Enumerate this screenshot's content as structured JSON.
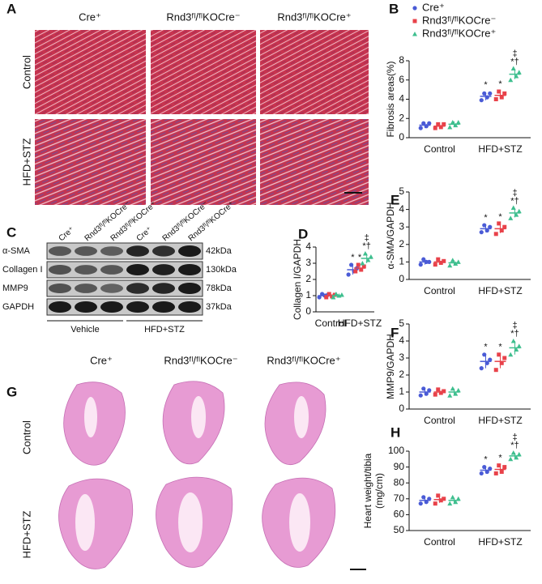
{
  "panels": [
    "A",
    "B",
    "C",
    "D",
    "E",
    "F",
    "G",
    "H"
  ],
  "histology": {
    "columns": [
      "Cre⁺",
      "Rnd3ᶠˡ/ᶠˡKOCre⁻",
      "Rnd3ᶠˡ/ᶠˡKOCre⁺"
    ],
    "rows": [
      "Control",
      "HFD+STZ"
    ]
  },
  "blot": {
    "lanes": [
      "Cre⁺",
      "Rnd3ᶠˡ/ᶠˡKOCre⁻",
      "Rnd3ᶠˡ/ᶠˡKOCre⁺",
      "Cre⁺",
      "Rnd3ᶠˡ/ᶠˡKOCre⁻",
      "Rnd3ᶠˡ/ᶠˡKOCre⁺"
    ],
    "bands": [
      {
        "name": "α-SMA",
        "size": "42kDa"
      },
      {
        "name": "Collagen I",
        "size": "130kDa"
      },
      {
        "name": "MMP9",
        "size": "78kDa"
      },
      {
        "name": "GAPDH",
        "size": "37kDa"
      }
    ],
    "groups": [
      "Vehicle",
      "HFD+STZ"
    ]
  },
  "heart_sections": {
    "columns": [
      "Cre⁺",
      "Rnd3ᶠˡ/ᶠˡKOCre⁻",
      "Rnd3ᶠˡ/ᶠˡKOCre⁺"
    ],
    "rows": [
      "Control",
      "HFD+STZ"
    ]
  },
  "chart_data": [
    {
      "type": "dot",
      "categories": [
        "Control",
        "HFD+STZ"
      ],
      "y_label": [
        "Fibrosis areas(%)"
      ],
      "ylim": [
        0,
        8
      ],
      "yticks": [
        0,
        2,
        4,
        6,
        8
      ],
      "legend": "top-left",
      "series": [
        {
          "name": "Cre⁺",
          "color": "#4a5bd6",
          "marker": "circle",
          "values": [
            1.3,
            4.3
          ],
          "errors": [
            0.3,
            0.4
          ],
          "dots": [
            [
              1.0,
              1.5,
              1.2,
              1.5
            ],
            [
              3.9,
              4.6,
              4.2,
              4.6
            ]
          ],
          "annotations": [
            null,
            [
              "*"
            ]
          ]
        },
        {
          "name": "Rnd3ᶠˡ/ᶠˡKOCre⁻",
          "color": "#e8424a",
          "marker": "square",
          "values": [
            1.2,
            4.4
          ],
          "errors": [
            0.3,
            0.4
          ],
          "dots": [
            [
              1.0,
              1.4,
              1.1,
              1.4
            ],
            [
              4.0,
              4.8,
              4.2,
              4.6
            ]
          ],
          "annotations": [
            null,
            [
              "*"
            ]
          ]
        },
        {
          "name": "Rnd3ᶠˡ/ᶠˡKOCre⁺",
          "color": "#3fbf8f",
          "marker": "triangle",
          "values": [
            1.4,
            6.6
          ],
          "errors": [
            0.3,
            0.5
          ],
          "dots": [
            [
              1.1,
              1.6,
              1.3,
              1.6
            ],
            [
              6.0,
              7.2,
              6.4,
              6.8
            ]
          ],
          "annotations": [
            null,
            [
              "‡",
              "*†"
            ]
          ]
        }
      ]
    },
    {
      "type": "dot",
      "categories": [
        "Control",
        "HFD+STZ"
      ],
      "y_label": [
        "Collagen I/GAPDH"
      ],
      "ylim": [
        0,
        4
      ],
      "yticks": [
        0,
        1,
        2,
        3,
        4
      ],
      "series": [
        {
          "color": "#4a5bd6",
          "marker": "circle",
          "values": [
            1.0,
            2.6
          ],
          "errors": [
            0.1,
            0.3
          ],
          "dots": [
            [
              0.9,
              1.1,
              1.0,
              1.05
            ],
            [
              2.3,
              2.9,
              2.5,
              2.7
            ]
          ],
          "annotations": [
            null,
            [
              "*"
            ]
          ]
        },
        {
          "color": "#e8424a",
          "marker": "square",
          "values": [
            1.0,
            2.7
          ],
          "errors": [
            0.1,
            0.2
          ],
          "dots": [
            [
              0.9,
              1.1,
              0.95,
              1.05
            ],
            [
              2.5,
              2.9,
              2.6,
              2.8
            ]
          ],
          "annotations": [
            null,
            [
              "*"
            ]
          ]
        },
        {
          "color": "#3fbf8f",
          "marker": "triangle",
          "values": [
            1.0,
            3.3
          ],
          "errors": [
            0.1,
            0.3
          ],
          "dots": [
            [
              0.9,
              1.1,
              1.0,
              1.05
            ],
            [
              3.0,
              3.6,
              3.2,
              3.4
            ]
          ],
          "annotations": [
            null,
            [
              "‡",
              "*†"
            ]
          ]
        }
      ]
    },
    {
      "type": "dot",
      "categories": [
        "Control",
        "HFD+STZ"
      ],
      "y_label": [
        "α-SMA/GAPDH"
      ],
      "ylim": [
        0,
        5
      ],
      "yticks": [
        0,
        1,
        2,
        3,
        4,
        5
      ],
      "series": [
        {
          "color": "#4a5bd6",
          "marker": "circle",
          "values": [
            1.0,
            2.9
          ],
          "errors": [
            0.15,
            0.2
          ],
          "dots": [
            [
              0.85,
              1.15,
              1.0,
              1.0
            ],
            [
              2.7,
              3.1,
              2.8,
              3.0
            ]
          ],
          "annotations": [
            null,
            [
              "*"
            ]
          ]
        },
        {
          "color": "#e8424a",
          "marker": "square",
          "values": [
            1.0,
            2.9
          ],
          "errors": [
            0.15,
            0.25
          ],
          "dots": [
            [
              0.85,
              1.15,
              0.95,
              1.05
            ],
            [
              2.6,
              3.2,
              2.8,
              3.0
            ]
          ],
          "annotations": [
            null,
            [
              "*"
            ]
          ]
        },
        {
          "color": "#3fbf8f",
          "marker": "triangle",
          "values": [
            0.95,
            3.8
          ],
          "errors": [
            0.15,
            0.25
          ],
          "dots": [
            [
              0.8,
              1.1,
              0.9,
              1.0
            ],
            [
              3.5,
              4.1,
              3.7,
              3.9
            ]
          ],
          "annotations": [
            null,
            [
              "‡",
              "*†"
            ]
          ]
        }
      ]
    },
    {
      "type": "dot",
      "categories": [
        "Control",
        "HFD+STZ"
      ],
      "y_label": [
        "MMP9/GAPDH"
      ],
      "ylim": [
        0,
        5
      ],
      "yticks": [
        0,
        1,
        2,
        3,
        4,
        5
      ],
      "series": [
        {
          "color": "#4a5bd6",
          "marker": "circle",
          "values": [
            1.0,
            2.8
          ],
          "errors": [
            0.2,
            0.4
          ],
          "dots": [
            [
              0.8,
              1.2,
              0.9,
              1.1
            ],
            [
              2.4,
              3.2,
              2.7,
              2.9
            ]
          ],
          "annotations": [
            null,
            [
              "*"
            ]
          ]
        },
        {
          "color": "#e8424a",
          "marker": "square",
          "values": [
            1.0,
            2.8
          ],
          "errors": [
            0.15,
            0.4
          ],
          "dots": [
            [
              0.85,
              1.15,
              0.95,
              1.05
            ],
            [
              2.3,
              3.2,
              2.7,
              3.0
            ]
          ],
          "annotations": [
            null,
            [
              "*"
            ]
          ]
        },
        {
          "color": "#3fbf8f",
          "marker": "triangle",
          "values": [
            1.0,
            3.6
          ],
          "errors": [
            0.2,
            0.4
          ],
          "dots": [
            [
              0.8,
              1.2,
              0.9,
              1.1
            ],
            [
              3.2,
              4.0,
              3.5,
              3.7
            ]
          ],
          "annotations": [
            null,
            [
              "‡",
              "*†"
            ]
          ]
        }
      ]
    },
    {
      "type": "dot",
      "categories": [
        "Control",
        "HFD+STZ"
      ],
      "y_label": [
        "Heart weight/tibia",
        "(mg/cm)"
      ],
      "ylim": [
        50,
        100
      ],
      "yticks": [
        50,
        60,
        70,
        80,
        90,
        100
      ],
      "series": [
        {
          "color": "#4a5bd6",
          "marker": "circle",
          "values": [
            69,
            88
          ],
          "errors": [
            2,
            2
          ],
          "dots": [
            [
              67,
              71,
              68,
              70
            ],
            [
              86,
              90,
              87,
              89
            ]
          ],
          "annotations": [
            null,
            [
              "*"
            ]
          ]
        },
        {
          "color": "#e8424a",
          "marker": "square",
          "values": [
            69.5,
            88.5
          ],
          "errors": [
            2,
            2.5
          ],
          "dots": [
            [
              67,
              72,
              69,
              70
            ],
            [
              86,
              91,
              87,
              90
            ]
          ],
          "annotations": [
            null,
            [
              "*"
            ]
          ]
        },
        {
          "color": "#3fbf8f",
          "marker": "triangle",
          "values": [
            69,
            97
          ],
          "errors": [
            1.5,
            2
          ],
          "dots": [
            [
              67,
              71,
              68,
              70
            ],
            [
              95,
              99,
              96,
              98
            ]
          ],
          "annotations": [
            null,
            [
              "‡",
              "*†"
            ]
          ]
        }
      ]
    }
  ]
}
